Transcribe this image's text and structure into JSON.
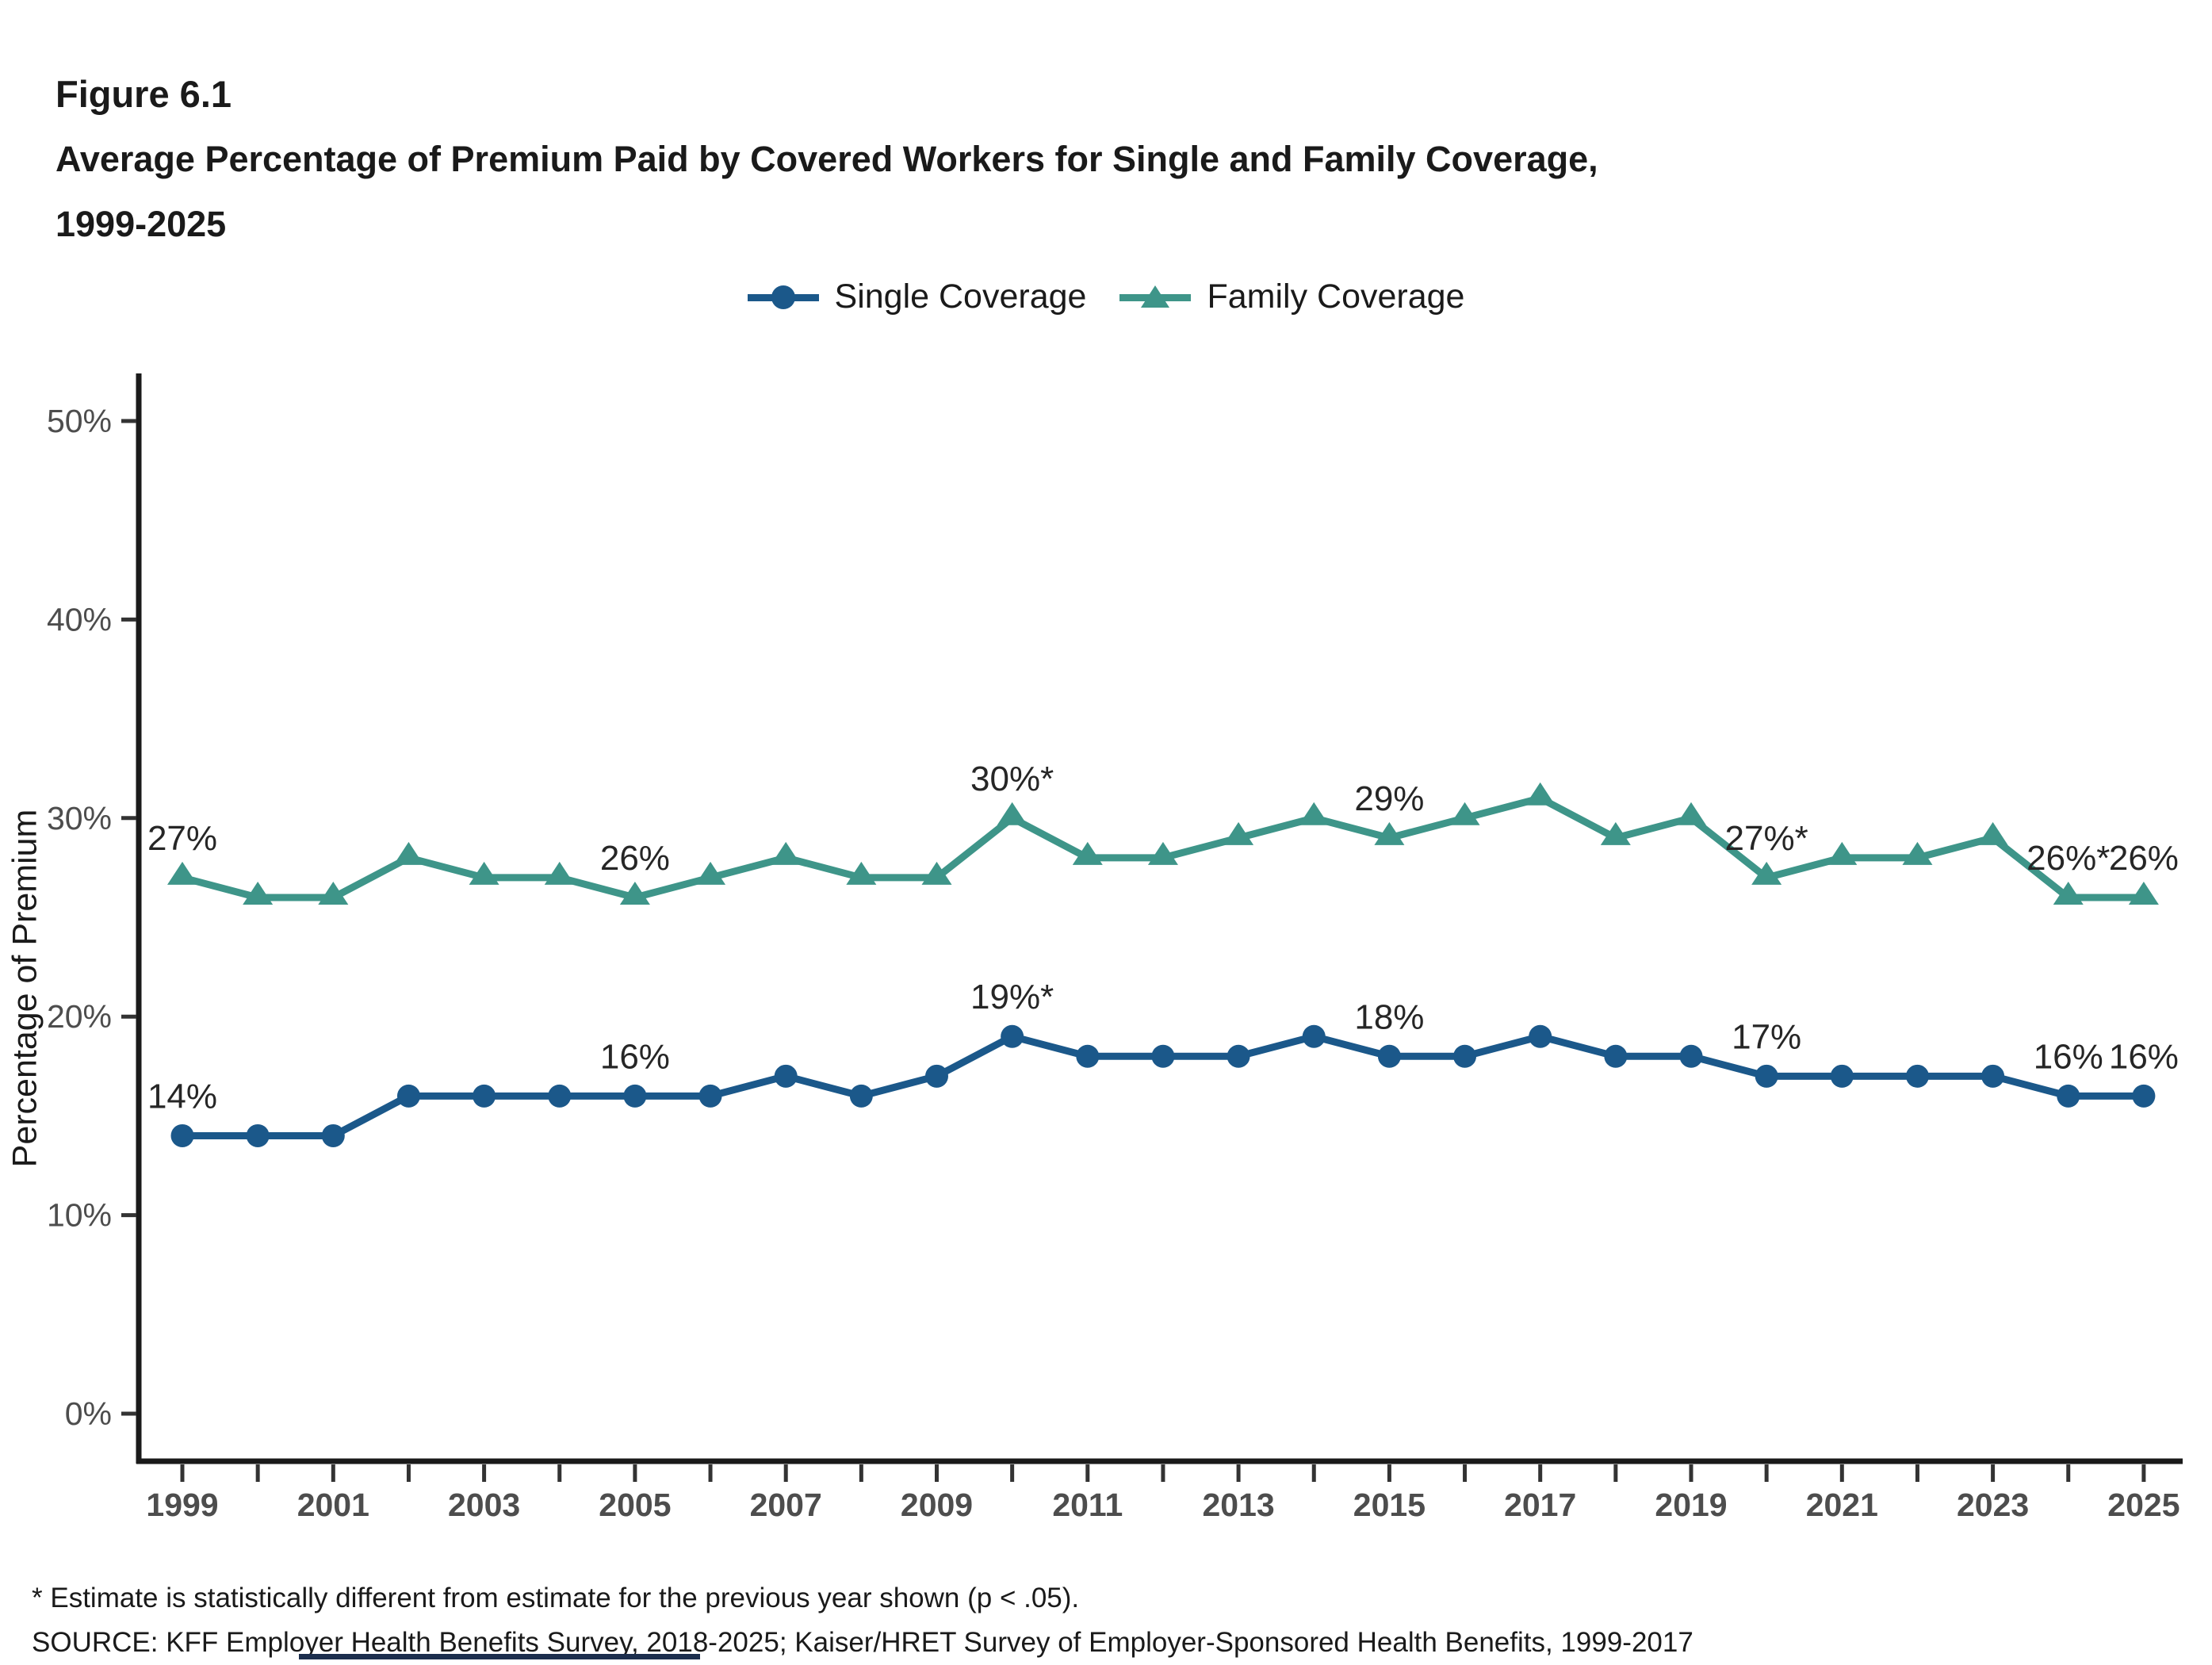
{
  "figure": {
    "label": "Figure 6.1",
    "title_line1": "Average Percentage of Premium Paid by Covered Workers for Single and Family Coverage,",
    "title_line2": "1999-2025"
  },
  "legend": [
    {
      "label": "Single Coverage",
      "marker": "circle-marker",
      "color": "#1b588a"
    },
    {
      "label": "Family Coverage",
      "marker": "triangle-marker",
      "color": "#3e9589"
    }
  ],
  "chart_data": {
    "type": "line",
    "title": "Average Percentage of Premium Paid by Covered Workers for Single and Family Coverage, 1999-2025",
    "xlabel": "",
    "ylabel": "Percentage of Premium",
    "ylim": [
      0,
      50
    ],
    "ytick_labels": [
      "0%",
      "10%",
      "20%",
      "30%",
      "40%",
      "50%"
    ],
    "x": [
      1999,
      2000,
      2001,
      2002,
      2003,
      2004,
      2005,
      2006,
      2007,
      2008,
      2009,
      2010,
      2011,
      2012,
      2013,
      2014,
      2015,
      2016,
      2017,
      2018,
      2019,
      2020,
      2021,
      2022,
      2023,
      2024,
      2025
    ],
    "xtick_labels": [
      "1999",
      "2001",
      "2003",
      "2005",
      "2007",
      "2009",
      "2011",
      "2013",
      "2015",
      "2017",
      "2019",
      "2021",
      "2023",
      "2025"
    ],
    "grid": false,
    "legend_position": "top",
    "series": [
      {
        "name": "Single Coverage",
        "color": "#1b588a",
        "marker": "circle",
        "values": [
          14,
          14,
          14,
          16,
          16,
          16,
          16,
          16,
          17,
          16,
          17,
          19,
          18,
          18,
          18,
          19,
          18,
          18,
          19,
          18,
          18,
          17,
          17,
          17,
          17,
          16,
          16
        ]
      },
      {
        "name": "Family Coverage",
        "color": "#3e9589",
        "marker": "triangle",
        "values": [
          27,
          26,
          26,
          28,
          27,
          27,
          26,
          27,
          28,
          27,
          27,
          30,
          28,
          28,
          29,
          30,
          29,
          30,
          31,
          29,
          30,
          27,
          28,
          28,
          29,
          26,
          26
        ]
      }
    ],
    "annotations": [
      {
        "series": "Family Coverage",
        "year": 1999,
        "text": "27%"
      },
      {
        "series": "Family Coverage",
        "year": 2005,
        "text": "26%"
      },
      {
        "series": "Family Coverage",
        "year": 2010,
        "text": "30%*"
      },
      {
        "series": "Family Coverage",
        "year": 2015,
        "text": "29%"
      },
      {
        "series": "Family Coverage",
        "year": 2020,
        "text": "27%*"
      },
      {
        "series": "Family Coverage",
        "year": 2024,
        "text": "26%*"
      },
      {
        "series": "Family Coverage",
        "year": 2025,
        "text": "26%"
      },
      {
        "series": "Single Coverage",
        "year": 1999,
        "text": "14%"
      },
      {
        "series": "Single Coverage",
        "year": 2005,
        "text": "16%"
      },
      {
        "series": "Single Coverage",
        "year": 2010,
        "text": "19%*"
      },
      {
        "series": "Single Coverage",
        "year": 2015,
        "text": "18%"
      },
      {
        "series": "Single Coverage",
        "year": 2020,
        "text": "17%"
      },
      {
        "series": "Single Coverage",
        "year": 2024,
        "text": "16%"
      },
      {
        "series": "Single Coverage",
        "year": 2025,
        "text": "16%"
      }
    ]
  },
  "footnotes": {
    "asterisk_note": "* Estimate is statistically different from estimate for the previous year shown (p < .05).",
    "source": "SOURCE: KFF Employer Health Benefits Survey, 2018-2025; Kaiser/HRET Survey of Employer-Sponsored Health Benefits, 1999-2017"
  },
  "colors": {
    "single_coverage": "#1b588a",
    "family_coverage": "#3e9589",
    "axis": "#1a1a1a",
    "tick_label": "#4d4d4d",
    "annotation": "#262626"
  }
}
